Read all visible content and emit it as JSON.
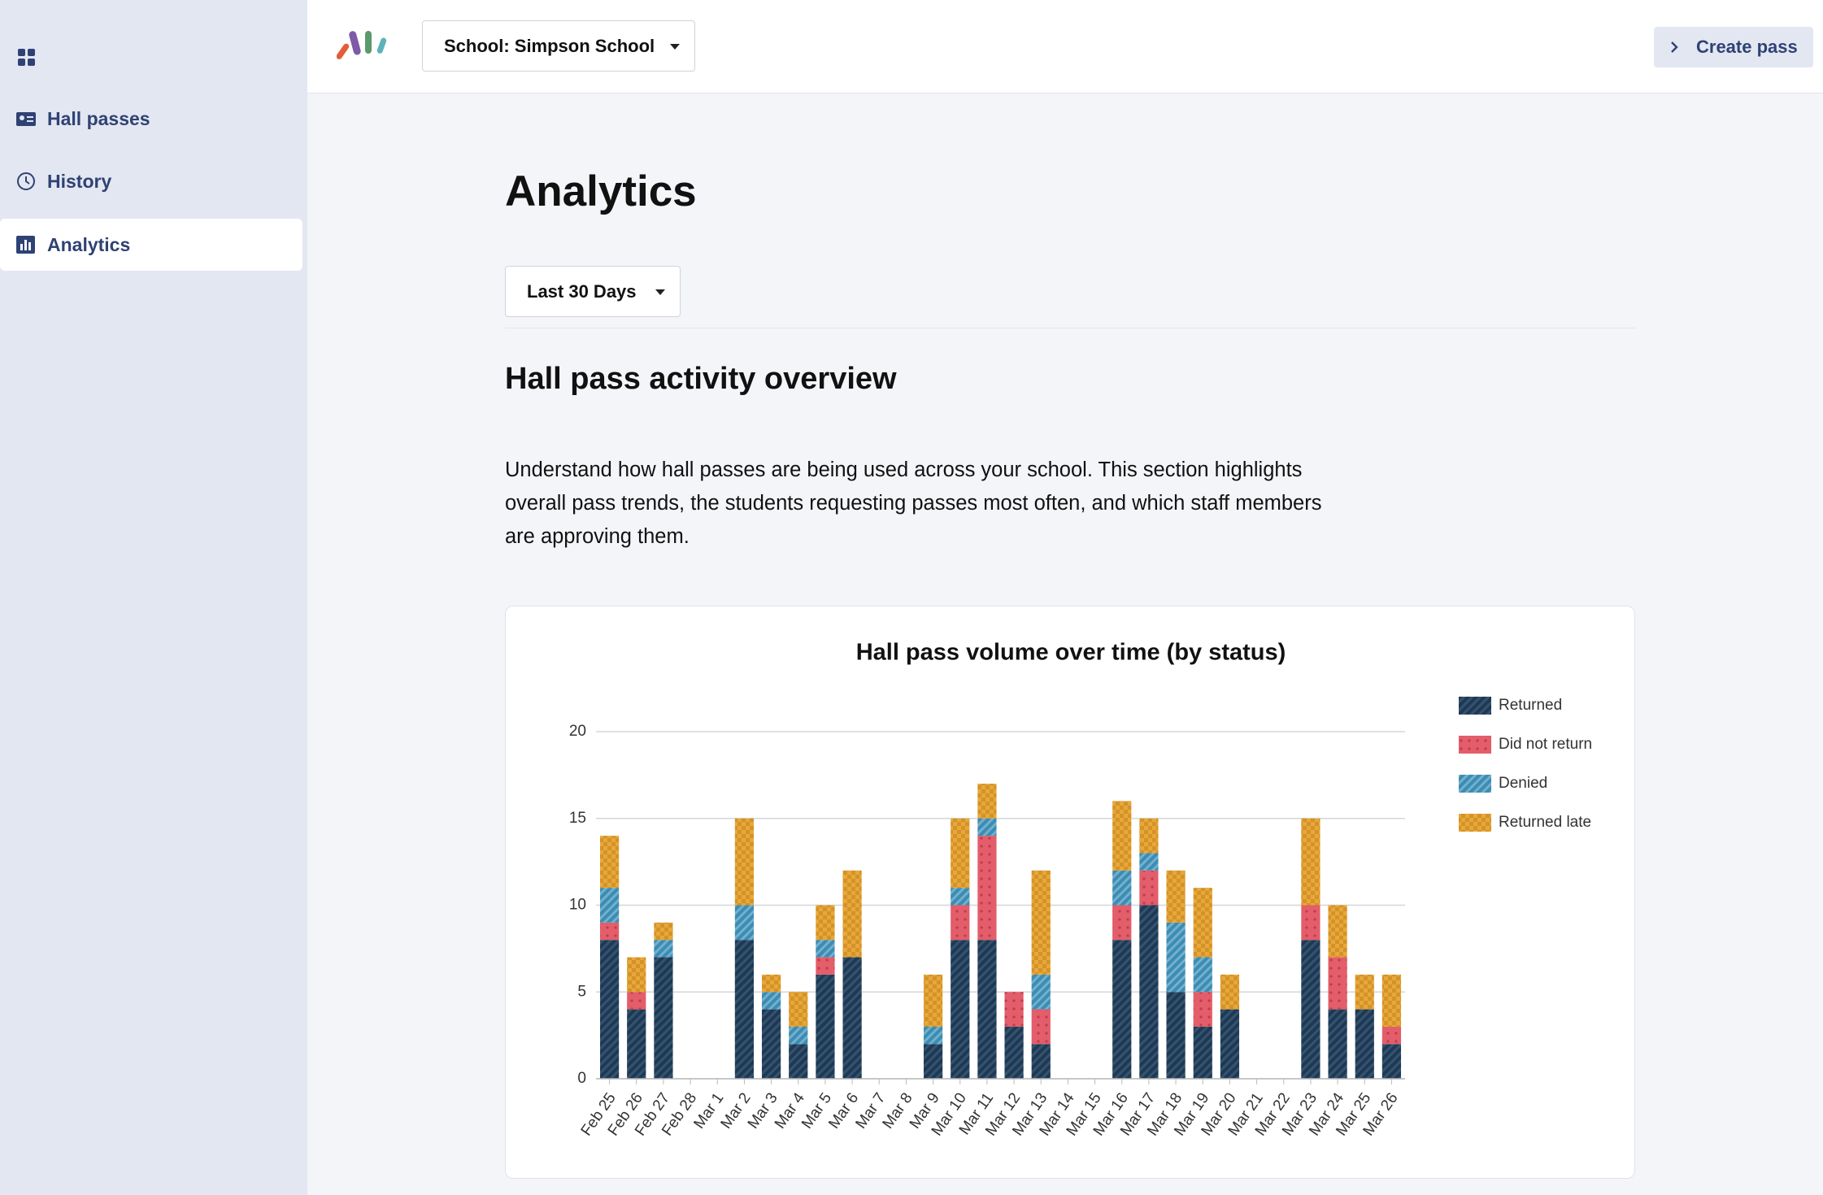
{
  "nav": {
    "items": [
      "Hall passes",
      "History",
      "Analytics"
    ]
  },
  "header": {
    "school": "School: Simpson School",
    "button": "Create pass"
  },
  "page": {
    "title": "Analytics",
    "range": "Last 30 Days",
    "section_title": "Hall pass activity overview",
    "description": "Understand how hall passes are being used across your school. This section highlights overall pass trends, the students requesting passes most often, and which staff members are approving them."
  },
  "chart_data": {
    "type": "stacked_bar",
    "title": "Hall pass volume over time (by status)",
    "categories": [
      "Feb 25",
      "Feb 26",
      "Feb 27",
      "Feb 28",
      "Mar 1",
      "Mar 2",
      "Mar 3",
      "Mar 4",
      "Mar 5",
      "Mar 6",
      "Mar 7",
      "Mar 8",
      "Mar 9",
      "Mar 10",
      "Mar 11",
      "Mar 12",
      "Mar 13",
      "Mar 14",
      "Mar 15",
      "Mar 16",
      "Mar 17",
      "Mar 18",
      "Mar 19",
      "Mar 20",
      "Mar 21",
      "Mar 22",
      "Mar 23",
      "Mar 24",
      "Mar 25",
      "Mar 26"
    ],
    "series": [
      {
        "name": "Returned",
        "color": "#1c3a57",
        "values": [
          8,
          4,
          7,
          0,
          0,
          8,
          4,
          2,
          6,
          7,
          0,
          0,
          2,
          8,
          8,
          3,
          2,
          0,
          0,
          8,
          10,
          5,
          3,
          4,
          0,
          0,
          8,
          4,
          4,
          2
        ]
      },
      {
        "name": "Did not return",
        "color": "#e35d6a",
        "values": [
          1,
          1,
          0,
          0,
          0,
          0,
          0,
          0,
          1,
          0,
          0,
          0,
          0,
          2,
          6,
          2,
          2,
          0,
          0,
          2,
          2,
          0,
          2,
          0,
          0,
          0,
          2,
          3,
          0,
          1
        ]
      },
      {
        "name": "Denied",
        "color": "#3a8db5",
        "values": [
          2,
          0,
          1,
          0,
          0,
          2,
          1,
          1,
          1,
          0,
          0,
          0,
          1,
          1,
          1,
          0,
          2,
          0,
          0,
          2,
          1,
          4,
          2,
          0,
          0,
          0,
          0,
          0,
          0,
          0
        ]
      },
      {
        "name": "Returned late",
        "color": "#e8a838",
        "values": [
          3,
          2,
          1,
          0,
          0,
          5,
          1,
          2,
          2,
          5,
          0,
          0,
          3,
          4,
          2,
          0,
          6,
          0,
          0,
          4,
          2,
          3,
          4,
          2,
          0,
          0,
          5,
          3,
          2,
          3
        ]
      }
    ],
    "ylim": [
      0,
      20
    ],
    "yticks": [
      0,
      5,
      10,
      15,
      20
    ],
    "grid": true,
    "legend": "right"
  }
}
